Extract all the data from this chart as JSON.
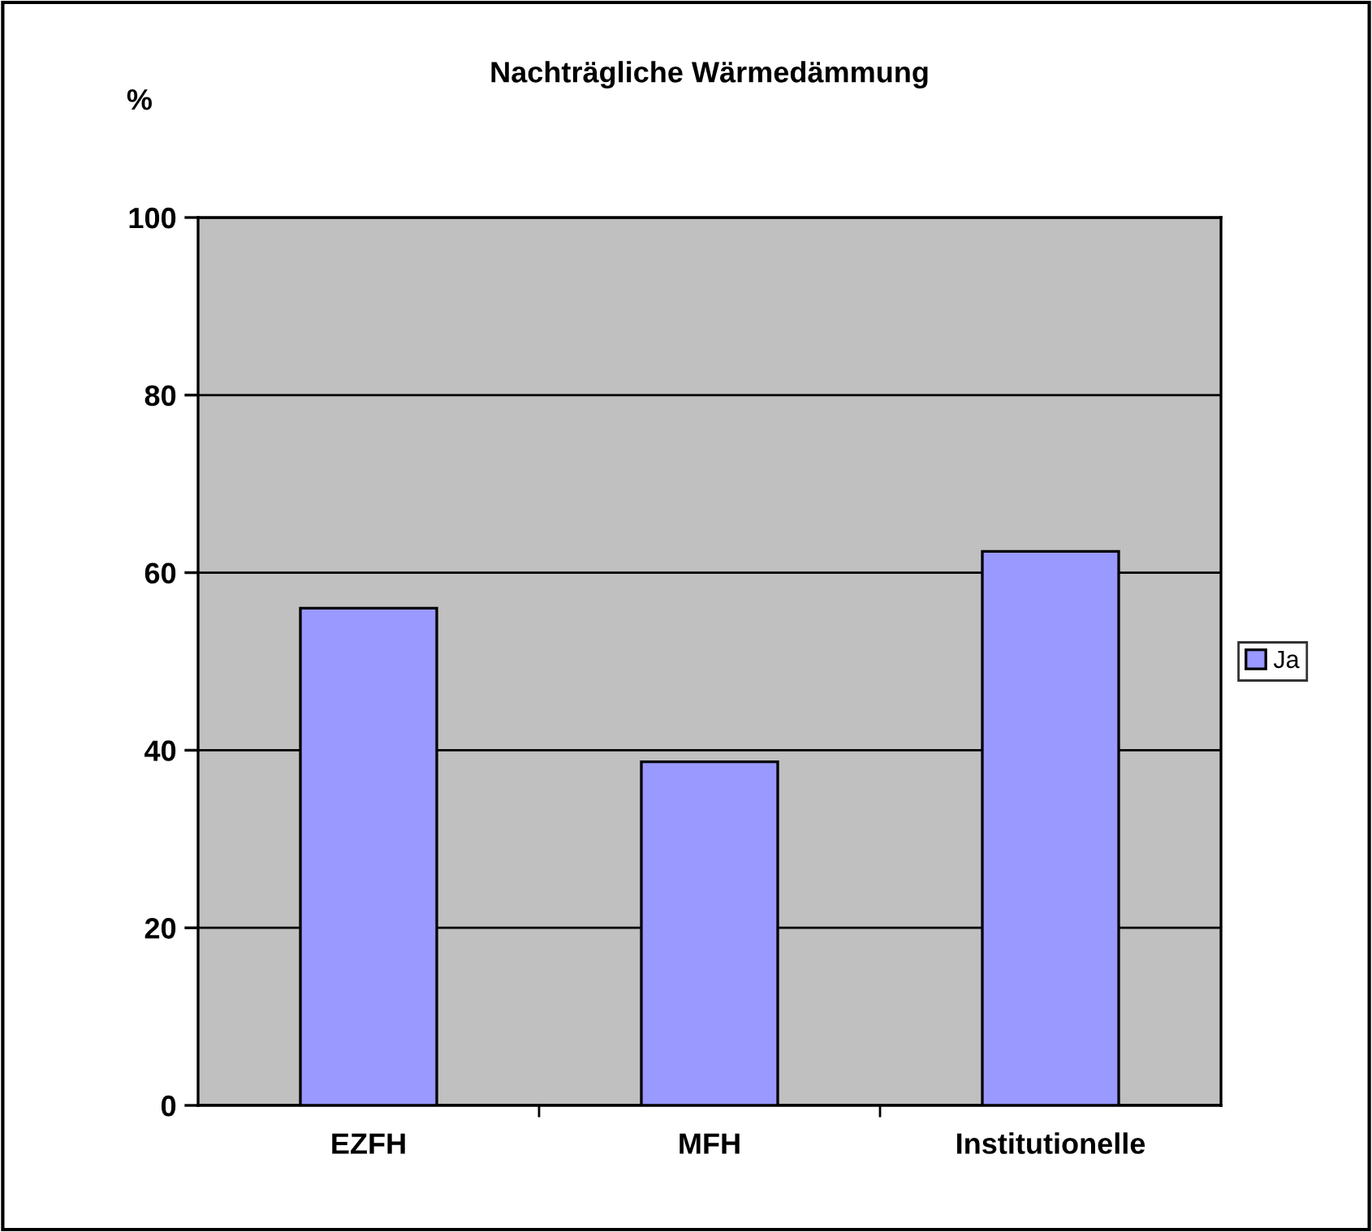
{
  "chart_data": {
    "type": "bar",
    "title": "Nachträgliche Wärmedämmung",
    "ylabel": "%",
    "categories": [
      "EZFH",
      "MFH",
      "Institutionelle"
    ],
    "series": [
      {
        "name": "Ja",
        "color": "#9999ff",
        "values": [
          56,
          38.7,
          62.4
        ]
      }
    ],
    "ylim": [
      0,
      100
    ],
    "yticks": [
      0,
      20,
      40,
      60,
      80,
      100
    ],
    "grid": "y",
    "legend": "right"
  }
}
